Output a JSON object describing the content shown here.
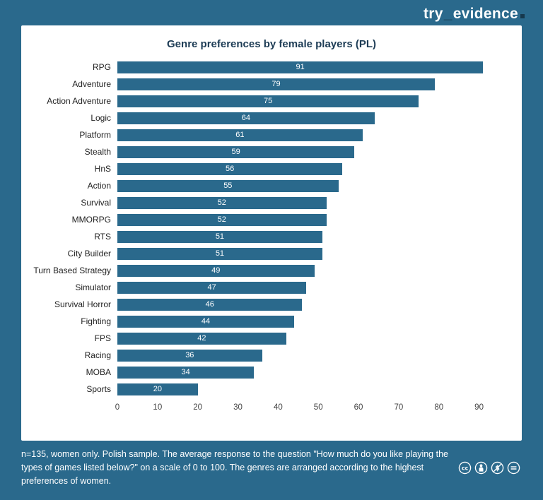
{
  "logo": {
    "prefix": "try",
    "separator": "_",
    "suffix": "evidence"
  },
  "chart_data": {
    "type": "bar",
    "orientation": "horizontal",
    "title": "Genre preferences by female players (PL)",
    "categories": [
      "RPG",
      "Adventure",
      "Action Adventure",
      "Logic",
      "Platform",
      "Stealth",
      "HnS",
      "Action",
      "Survival",
      "MMORPG",
      "RTS",
      "City Builder",
      "Turn Based Strategy",
      "Simulator",
      "Survival Horror",
      "Fighting",
      "FPS",
      "Racing",
      "MOBA",
      "Sports"
    ],
    "values": [
      91,
      79,
      75,
      64,
      61,
      59,
      56,
      55,
      52,
      52,
      51,
      51,
      49,
      47,
      46,
      44,
      42,
      36,
      34,
      20
    ],
    "xlim": [
      0,
      95
    ],
    "xticks": [
      0,
      10,
      20,
      30,
      40,
      50,
      60,
      70,
      80,
      90
    ],
    "grid": false,
    "legend": false,
    "value_labels": "inside-center"
  },
  "footer": {
    "note": "n=135, women only. Polish sample. The average response to the question \"How much do you like playing the types of games listed below?\" on a scale of 0 to 100. The genres are arranged according to the highest preferences of women.",
    "license_icons": [
      "cc",
      "attribution",
      "non-commercial",
      "no-derivatives"
    ]
  },
  "colors": {
    "background": "#2a698c",
    "card": "#ffffff",
    "bar": "#2a698c",
    "title_text": "#1d3c55",
    "value_label": "#ffffff",
    "footer_text": "#ffffff"
  }
}
